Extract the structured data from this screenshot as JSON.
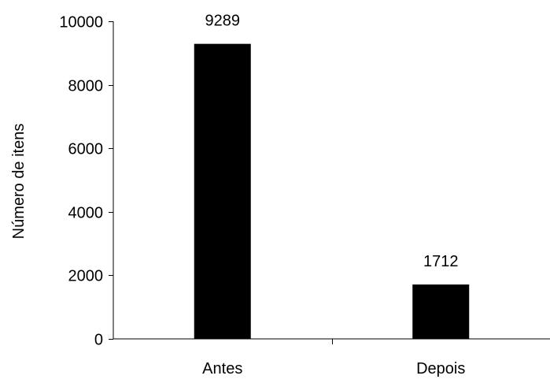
{
  "chart_data": {
    "type": "bar",
    "title": "",
    "xlabel": "",
    "ylabel": "Número de itens",
    "categories": [
      "Antes",
      "Depois"
    ],
    "values": [
      9289,
      1712
    ],
    "data_labels": [
      "9289",
      "1712"
    ],
    "ylim": [
      0,
      10000
    ],
    "yticks": [
      0,
      2000,
      4000,
      6000,
      8000,
      10000
    ],
    "ytick_labels": [
      "0",
      "2000",
      "4000",
      "6000",
      "8000",
      "10000"
    ],
    "grid": false,
    "legend": "none",
    "bar_color": "#000000",
    "axis_color": "#000000"
  }
}
